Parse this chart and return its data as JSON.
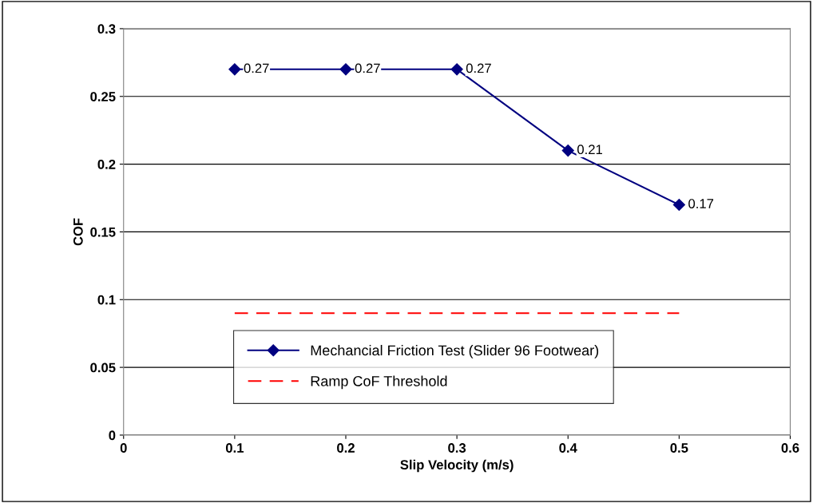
{
  "chart_data": {
    "type": "line",
    "xlabel": "Slip Velocity (m/s)",
    "ylabel": "COF",
    "x": [
      0.1,
      0.2,
      0.3,
      0.4,
      0.5
    ],
    "series": [
      {
        "name": "Mechancial Friction Test (Slider 96 Footwear)",
        "color": "#000080",
        "values": [
          0.27,
          0.27,
          0.27,
          0.21,
          0.17
        ],
        "value_labels": [
          "0.27",
          "0.27",
          "0.27",
          "0.21",
          "0.17"
        ],
        "marker": "diamond",
        "line_style": "solid"
      },
      {
        "name": "Ramp CoF Threshold",
        "color": "#ff0000",
        "values": [
          0.09,
          0.09,
          0.09,
          0.09,
          0.09
        ],
        "marker": "none",
        "line_style": "dashed"
      }
    ],
    "xlim": [
      0,
      0.6
    ],
    "xticks": [
      0,
      0.1,
      0.2,
      0.3,
      0.4,
      0.5,
      0.6
    ],
    "ylim": [
      0,
      0.3
    ],
    "yticks": [
      0,
      0.05,
      0.1,
      0.15,
      0.2,
      0.25,
      0.3
    ],
    "grid": "y",
    "legend": "bottom"
  }
}
